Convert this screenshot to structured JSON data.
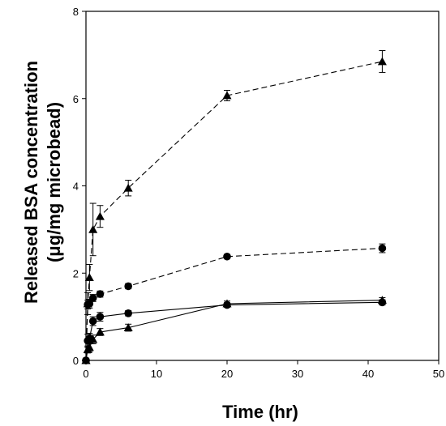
{
  "chart_data": {
    "type": "line",
    "xlabel": "Time (hr)",
    "ylabel_line1": "Released BSA concentration",
    "ylabel_line2": "(μg/mg microbead)",
    "xlim": [
      0,
      50
    ],
    "ylim": [
      0,
      8
    ],
    "x_ticks": [
      "0",
      "10",
      "20",
      "30",
      "40",
      "50"
    ],
    "y_ticks": [
      "0",
      "2",
      "4",
      "6",
      "8"
    ],
    "grid": false,
    "legend": "none",
    "series": [
      {
        "marker": "triangle",
        "line_style": "dashed",
        "x": [
          0,
          0.25,
          0.5,
          1,
          2,
          6,
          20,
          42
        ],
        "y": [
          0,
          1.3,
          1.9,
          3.0,
          3.3,
          3.95,
          6.07,
          6.85
        ],
        "err": [
          0,
          0.25,
          0.3,
          0.6,
          0.25,
          0.18,
          0.12,
          0.25
        ]
      },
      {
        "marker": "circle",
        "line_style": "dashed",
        "x": [
          0,
          0.25,
          0.5,
          1,
          2,
          6,
          20,
          42
        ],
        "y": [
          0,
          1.28,
          1.3,
          1.43,
          1.52,
          1.7,
          2.38,
          2.57
        ],
        "err": [
          0,
          0.1,
          0.1,
          0.08,
          0.07,
          0.06,
          0.05,
          0.1
        ]
      },
      {
        "marker": "circle",
        "line_style": "solid",
        "x": [
          0,
          0.25,
          0.5,
          1,
          2,
          6,
          20,
          42
        ],
        "y": [
          0,
          0.45,
          0.5,
          0.9,
          1.0,
          1.08,
          1.27,
          1.33
        ],
        "err": [
          0,
          0.15,
          0.12,
          0.1,
          0.1,
          0.06,
          0.05,
          0.06
        ]
      },
      {
        "marker": "triangle",
        "line_style": "solid",
        "x": [
          0,
          0.25,
          0.5,
          1,
          2,
          6,
          20,
          42
        ],
        "y": [
          0,
          0.25,
          0.3,
          0.48,
          0.65,
          0.75,
          1.3,
          1.38
        ],
        "err": [
          0,
          0.08,
          0.1,
          0.1,
          0.08,
          0.08,
          0.06,
          0.06
        ]
      }
    ]
  }
}
